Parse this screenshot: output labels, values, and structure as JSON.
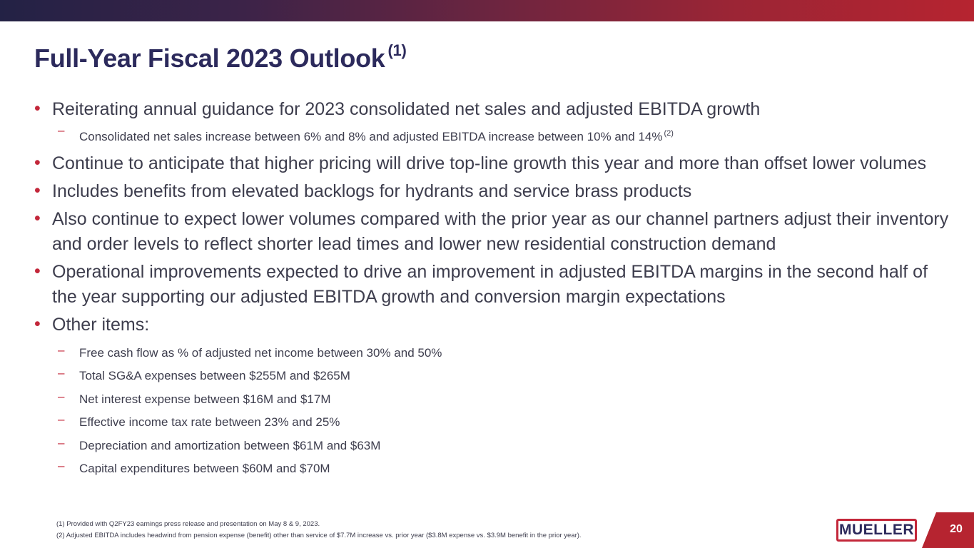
{
  "slide": {
    "title": "Full-Year Fiscal 2023 Outlook",
    "title_footnote": "(1)",
    "page_number": "20",
    "logo_text": "MUELLER",
    "accent_color": "#c3273a",
    "title_color": "#2c2a5c"
  },
  "bullets": [
    "Reiterating annual guidance for 2023 consolidated net sales and adjusted EBITDA growth",
    "Continue to anticipate that higher pricing will drive top-line growth this year and more than offset lower volumes",
    "Includes benefits from elevated backlogs for hydrants and service brass products",
    "Also continue to expect lower volumes compared with the prior year as our channel partners adjust their inventory and order levels to reflect shorter lead times and lower new residential construction demand",
    "Operational improvements expected to drive an improvement in adjusted EBITDA margins in the second half of the year supporting our adjusted EBITDA growth and conversion margin expectations",
    "Other items:"
  ],
  "sub_guidance": {
    "text": "Consolidated net sales increase between 6% and 8% and adjusted EBITDA increase between 10% and 14%",
    "footnote": "(2)"
  },
  "other_items": [
    "Free cash flow as % of adjusted net income between 30% and 50%",
    "Total SG&A expenses between $255M and $265M",
    "Net interest expense between $16M and $17M",
    "Effective income tax rate between 23% and 25%",
    "Depreciation and amortization between $61M and $63M",
    "Capital expenditures between $60M and $70M"
  ],
  "footnotes": [
    "(1)  Provided with Q2FY23 earnings press release and presentation on May 8 & 9, 2023.",
    "(2)  Adjusted EBITDA includes headwind from pension expense (benefit) other than service of $7.7M increase vs. prior year ($3.8M expense vs. $3.9M benefit in the prior year)."
  ]
}
